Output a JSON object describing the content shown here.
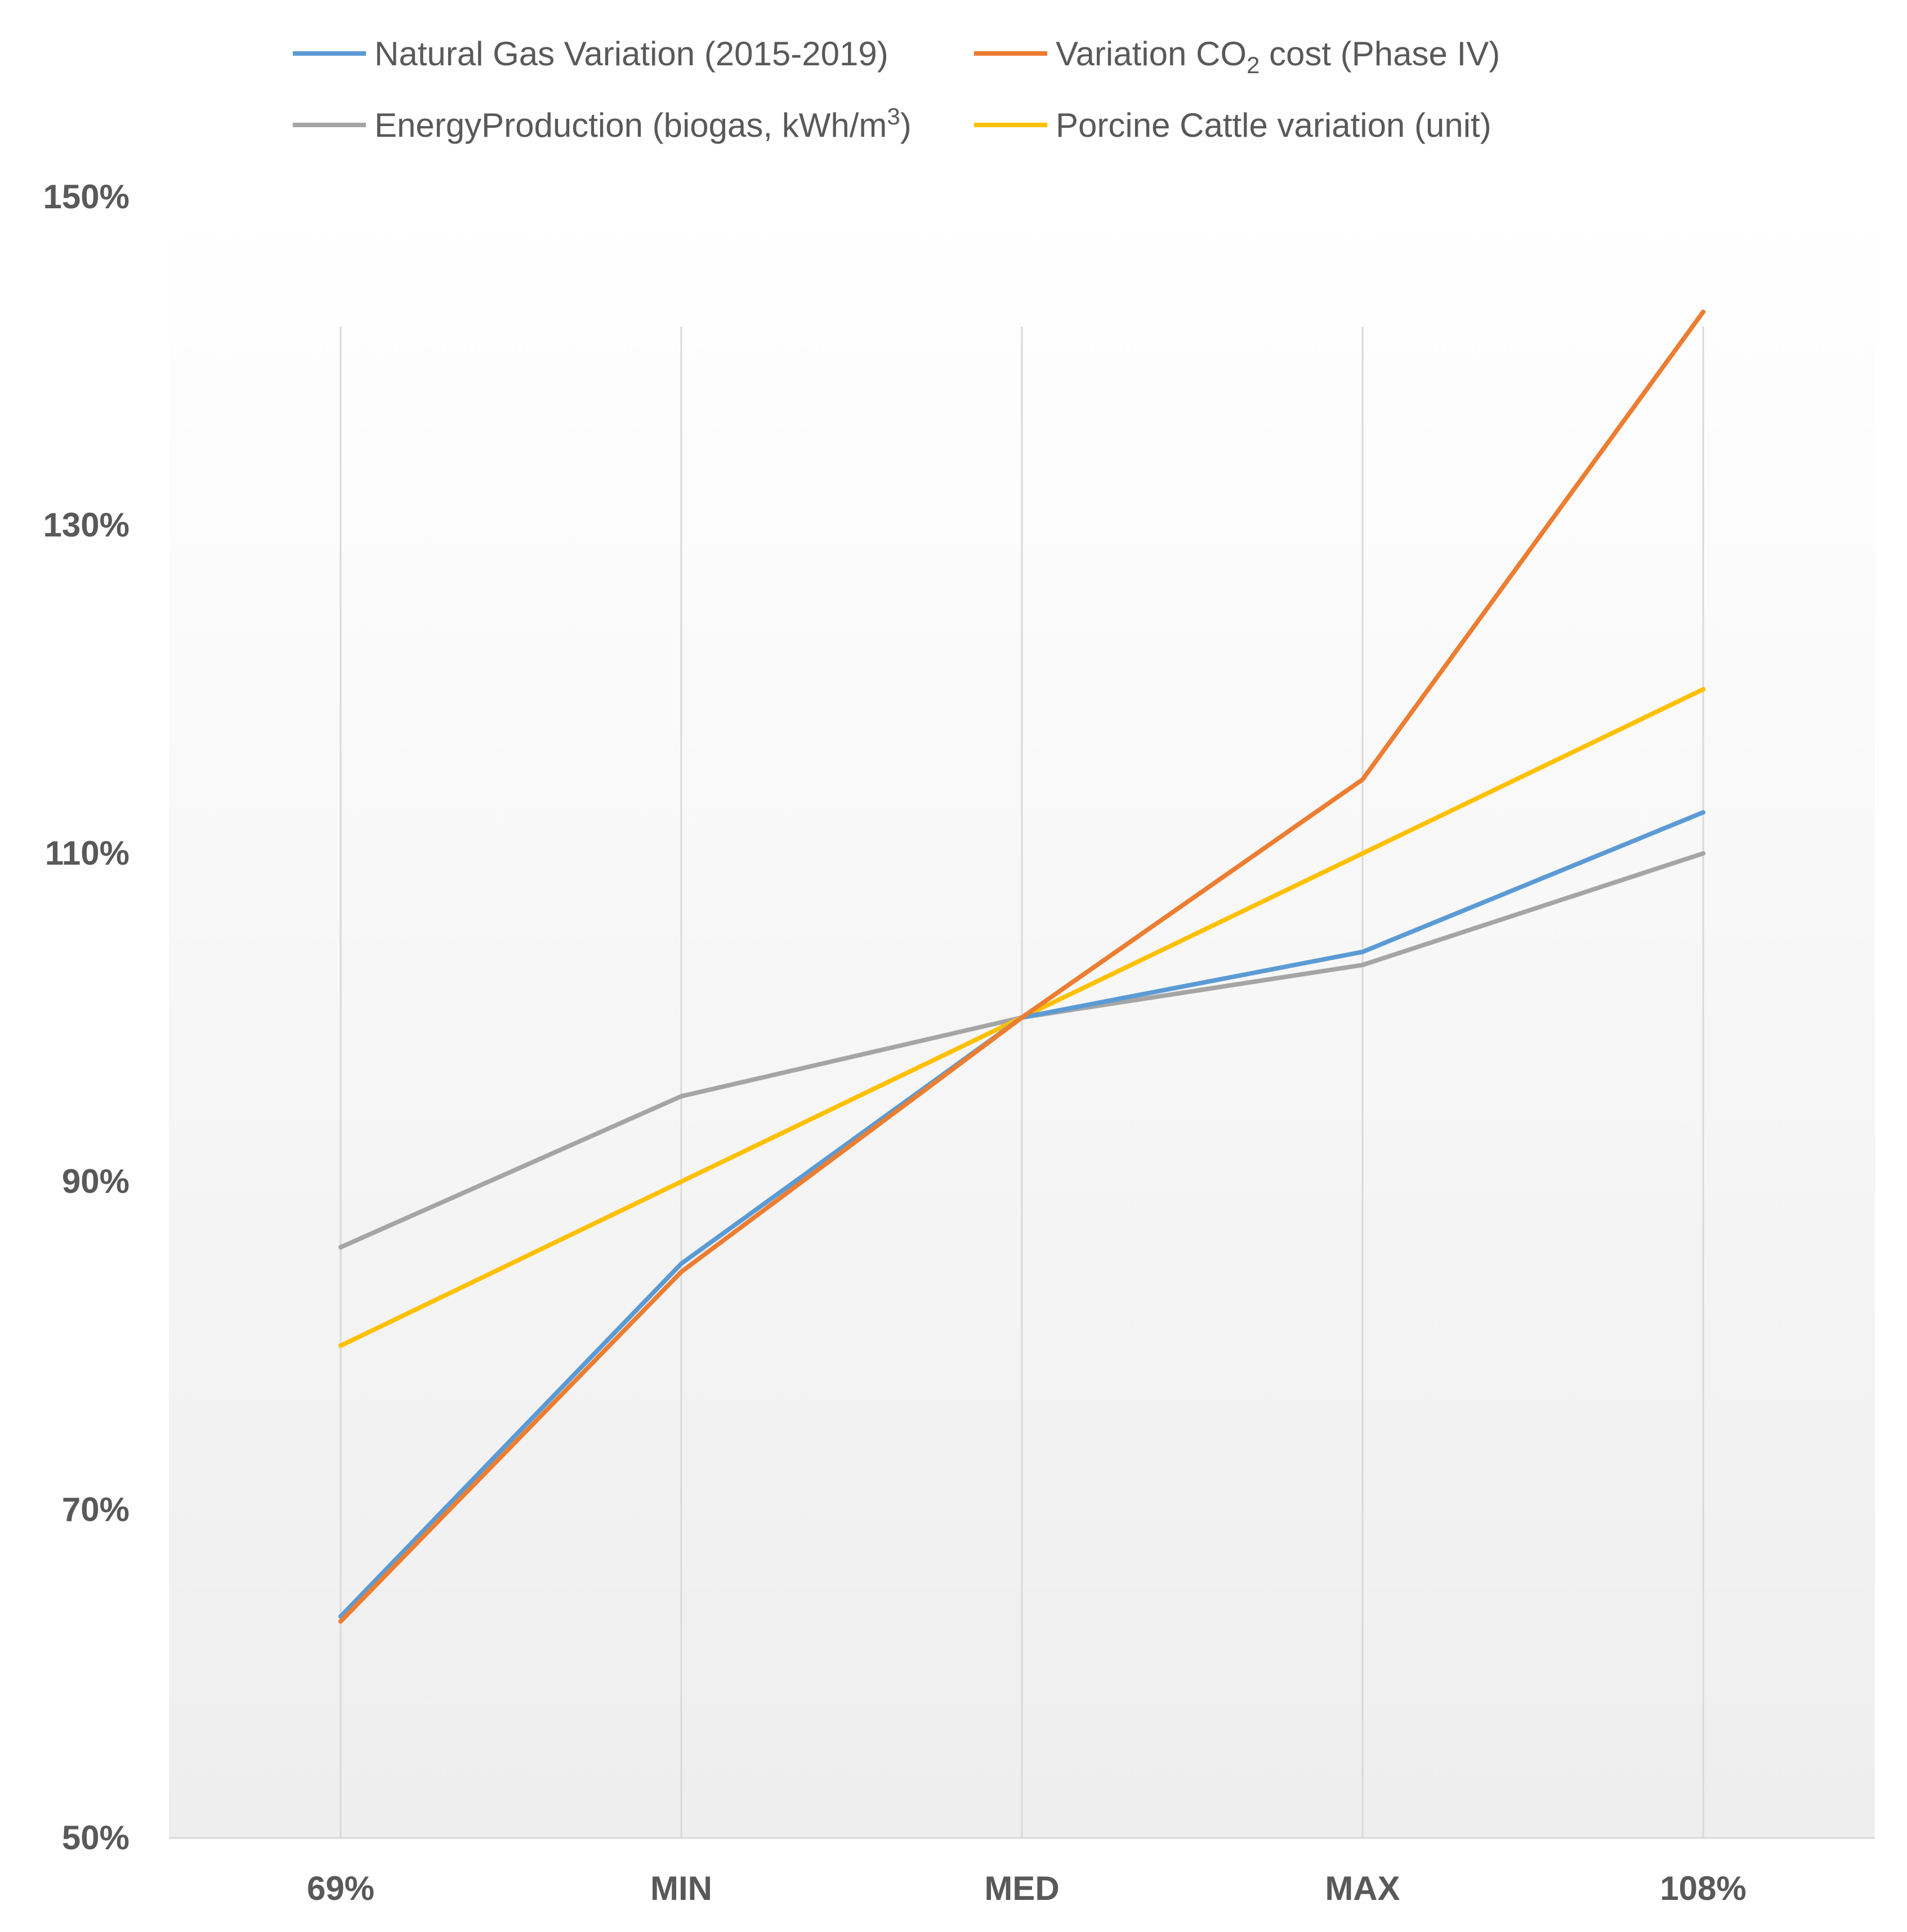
{
  "chart_data": {
    "type": "line",
    "title": "",
    "xlabel": "",
    "ylabel": "",
    "categories": [
      "69%",
      "MIN",
      "MED",
      "MAX",
      "108%"
    ],
    "ylim": [
      50,
      150
    ],
    "y_ticks": [
      50,
      70,
      90,
      110,
      130,
      150
    ],
    "y_tick_labels": [
      "50%",
      "70%",
      "90%",
      "110%",
      "130%",
      "150%"
    ],
    "grid": "vertical",
    "legend_position": "top",
    "series": [
      {
        "name": "Natural Gas Variation (2015-2019)",
        "color": "#5b9bd5",
        "values": [
          63.5,
          85,
          100,
          104,
          112.5
        ]
      },
      {
        "name": "Variation CO2 cost (Phase IV)",
        "label_main": "Variation CO",
        "label_sub": "2",
        "label_tail": " cost (Phase IV)",
        "color": "#ed7d31",
        "values": [
          63.2,
          84.5,
          100,
          114.5,
          143
        ]
      },
      {
        "name": "EnergyProduction (biogas, kWh/m3)",
        "label_main": "EnergyProduction (biogas, kWh/m",
        "label_sup": "3",
        "label_tail": ")",
        "color": "#a5a5a5",
        "values": [
          86,
          95.2,
          100,
          103.2,
          110
        ]
      },
      {
        "name": "Porcine Cattle variation (unit)",
        "color": "#ffc000",
        "values": [
          80,
          90,
          100,
          110,
          120
        ]
      }
    ]
  }
}
